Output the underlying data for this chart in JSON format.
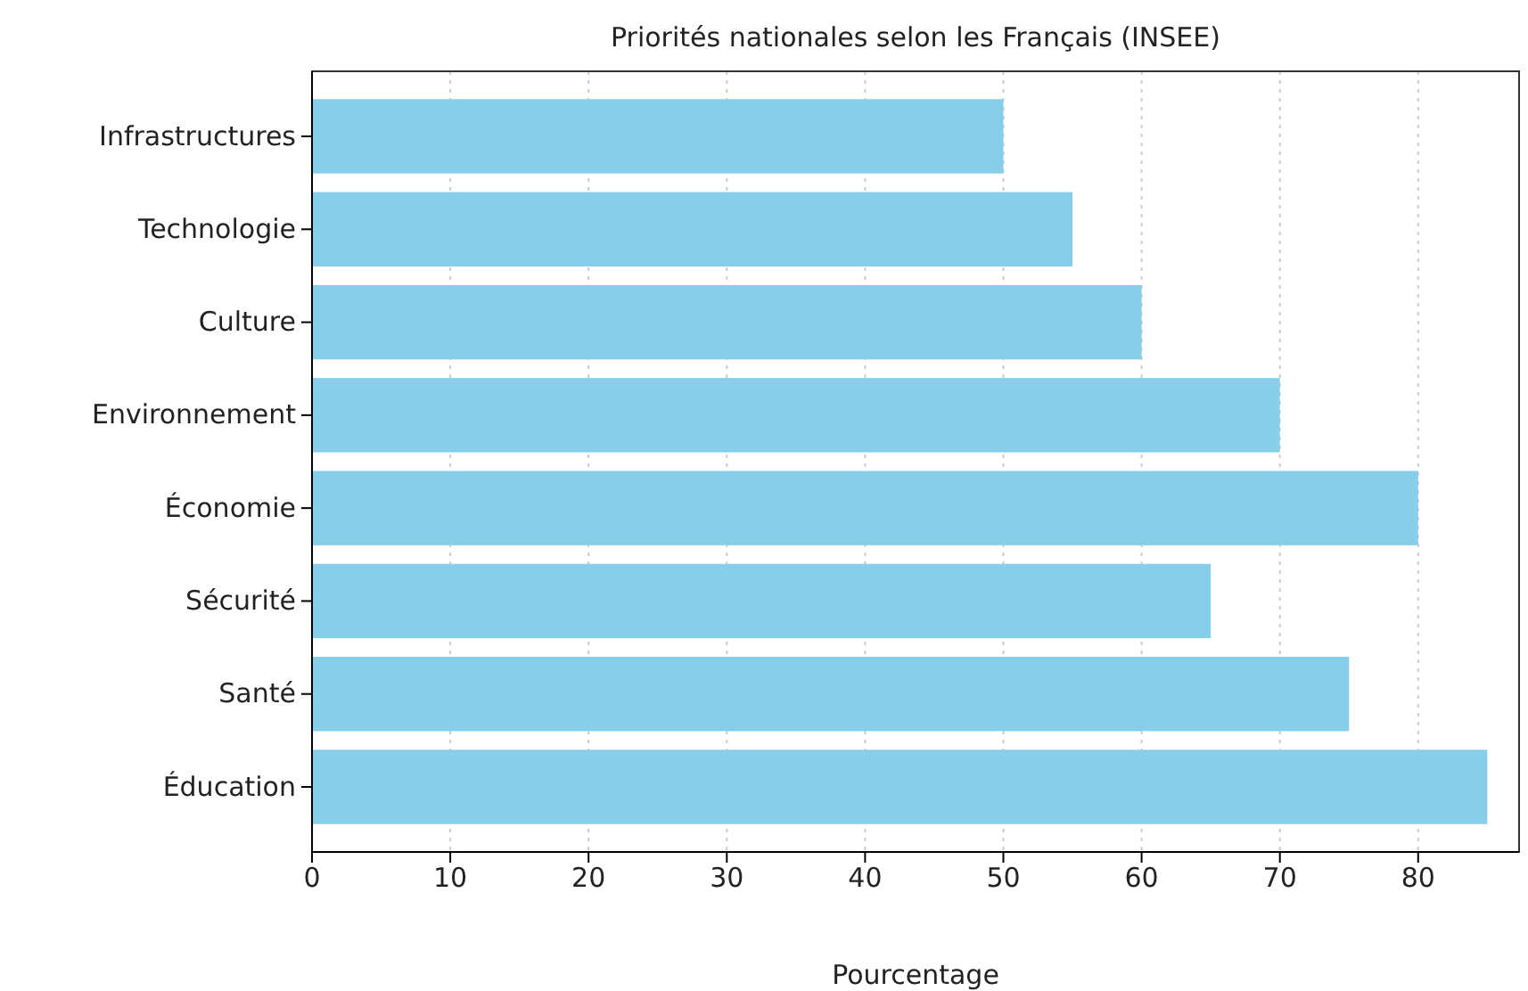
{
  "chart_data": {
    "type": "bar",
    "orientation": "horizontal",
    "title": "Priorités nationales selon les Français (INSEE)",
    "xlabel": "Pourcentage",
    "categories": [
      "Infrastructures",
      "Technologie",
      "Culture",
      "Environnement",
      "Économie",
      "Sécurité",
      "Santé",
      "Éducation"
    ],
    "values": [
      50,
      55,
      60,
      70,
      80,
      65,
      75,
      85
    ],
    "color": "#87ceeb",
    "xlim": [
      0,
      87.3
    ],
    "xticks": [
      0,
      10,
      20,
      30,
      40,
      50,
      60,
      70,
      80
    ],
    "grid": "x"
  }
}
